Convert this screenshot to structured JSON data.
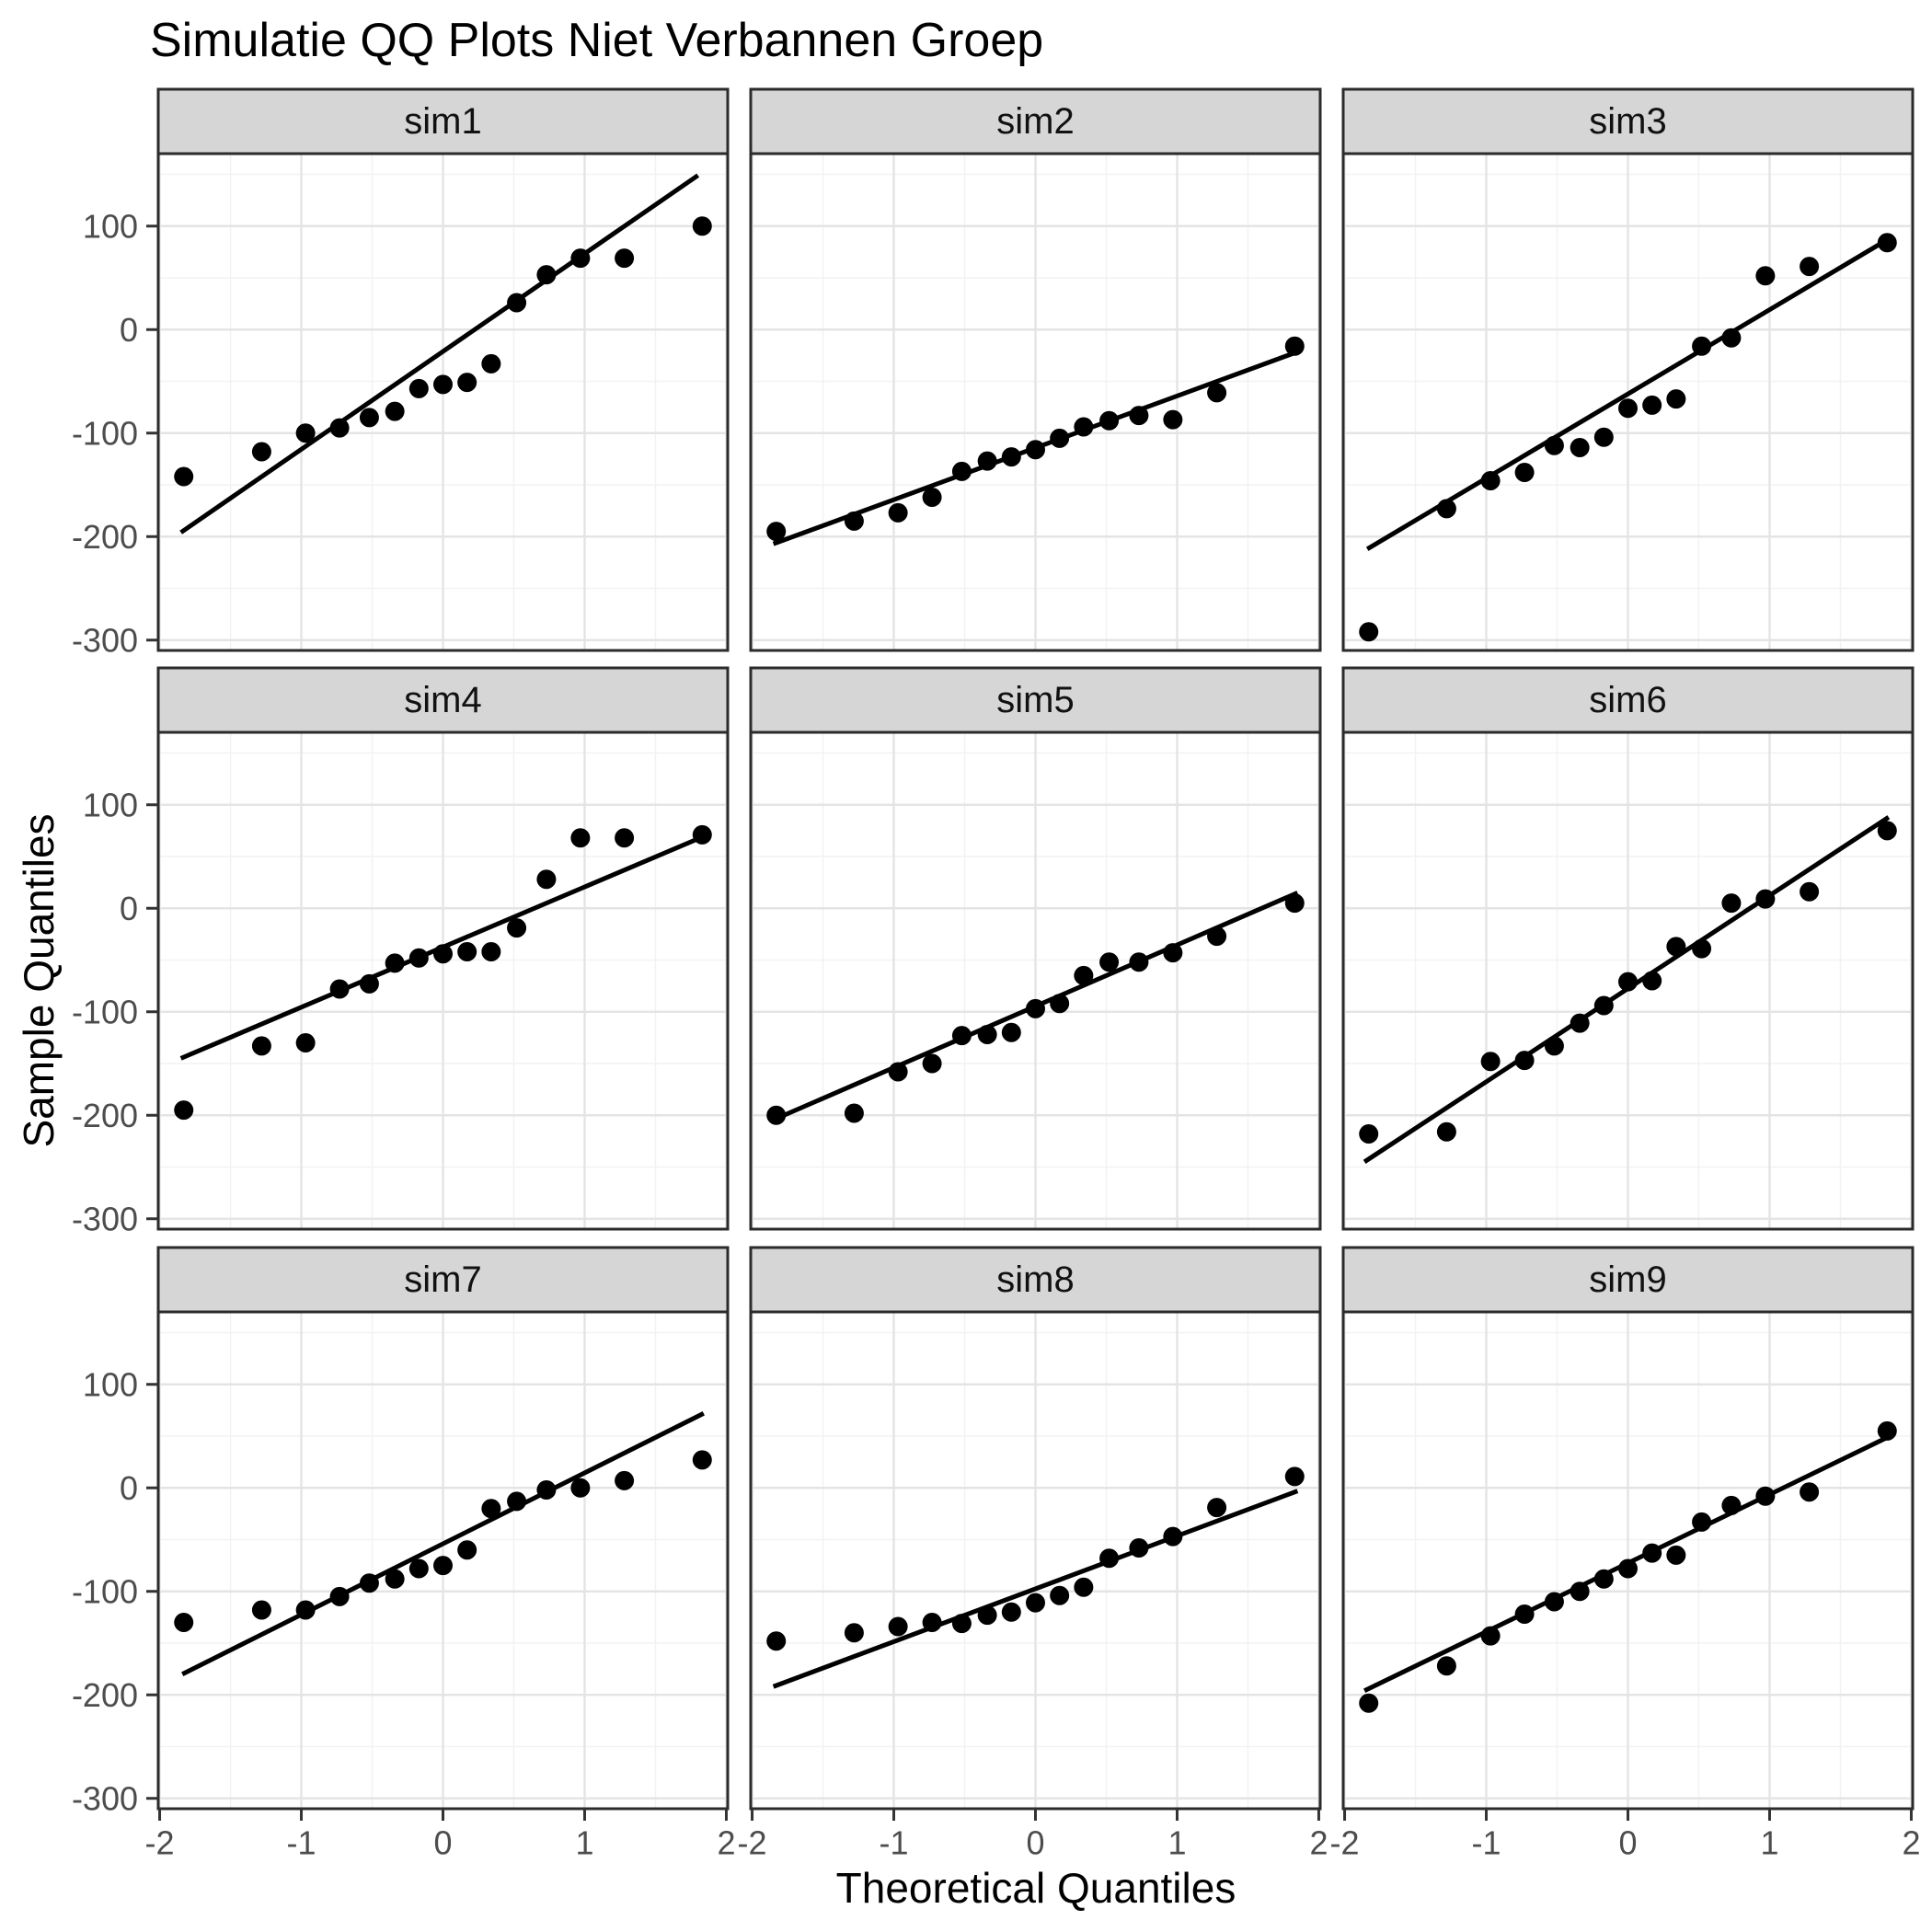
{
  "title": "Simulatie QQ Plots Niet Verbannen Groep",
  "x_axis": {
    "title": "Theoretical Quantiles",
    "tick_labels": [
      "-2",
      "-1",
      "0",
      "1",
      "2"
    ],
    "tick_values": [
      -2,
      -1,
      0,
      1,
      2
    ],
    "minor_breaks": [
      -1.5,
      -0.5,
      0.5,
      1.5
    ],
    "domain": [
      -2.01,
      2.01
    ]
  },
  "y_axis": {
    "title": "Sample Quantiles",
    "tick_labels": [
      "100",
      "0",
      "-100",
      "-200",
      "-300"
    ],
    "tick_values": [
      100,
      0,
      -100,
      -200,
      -300
    ],
    "minor_breaks": [
      150,
      50,
      -50,
      -150,
      -250
    ],
    "domain": [
      -310,
      170
    ]
  },
  "colors": {
    "background": "#FFFFFF",
    "panel_background": "#FFFFFF",
    "strip_fill": "#D6D6D6",
    "strip_border": "#2B2B2B",
    "panel_border": "#2B2B2B",
    "grid_major": "#E4E4E4",
    "grid_minor": "#F2F2F2",
    "point": "#000000",
    "qq_line": "#000000",
    "tick_mark": "#333333",
    "tick_label": "#4D4D4D",
    "strip_text": "#111111",
    "title_text": "#000000"
  },
  "chart_data": {
    "type": "scatter",
    "subtype": "qq-plot-facet-grid",
    "title": "Simulatie QQ Plots Niet Verbannen Groep",
    "xlabel": "Theoretical Quantiles",
    "ylabel": "Sample Quantiles",
    "grid": "on",
    "facet_layout": "3x3",
    "xlim": [
      -2.01,
      2.01
    ],
    "ylim": [
      -310,
      170
    ],
    "theoretical_quantiles": [
      -1.83,
      -1.28,
      -0.97,
      -0.73,
      -0.52,
      -0.34,
      -0.17,
      0,
      0.17,
      0.34,
      0.52,
      0.73,
      0.97,
      1.28,
      1.83
    ],
    "facets": [
      {
        "name": "sim1",
        "sample_quantiles": [
          -142,
          -118,
          -100,
          -95,
          -85,
          -79,
          -57,
          -53,
          -51,
          -33,
          26,
          53,
          69,
          69,
          100
        ],
        "qq_line": {
          "x": [
            -1.85,
            1.8
          ],
          "y": [
            -196,
            149
          ]
        }
      },
      {
        "name": "sim2",
        "sample_quantiles": [
          -195,
          -185,
          -177,
          -162,
          -137,
          -127,
          -123,
          -116,
          -105,
          -94,
          -88,
          -83,
          -87,
          -61,
          -16
        ],
        "qq_line": {
          "x": [
            -1.85,
            1.84
          ],
          "y": [
            -207,
            -22
          ]
        }
      },
      {
        "name": "sim3",
        "sample_quantiles": [
          -292,
          -173,
          -146,
          -138,
          -112,
          -114,
          -104,
          -76,
          -73,
          -67,
          -16,
          -8,
          52,
          61,
          84
        ],
        "qq_line": {
          "x": [
            -1.84,
            1.82
          ],
          "y": [
            -212,
            86
          ]
        }
      },
      {
        "name": "sim4",
        "sample_quantiles": [
          -195,
          -133,
          -130,
          -78,
          -73,
          -53,
          -48,
          -44,
          -42,
          -42,
          -19,
          28,
          68,
          68,
          71
        ],
        "qq_line": {
          "x": [
            -1.85,
            1.85
          ],
          "y": [
            -145,
            70
          ]
        }
      },
      {
        "name": "sim5",
        "sample_quantiles": [
          -200,
          -198,
          -158,
          -150,
          -123,
          -122,
          -120,
          -97,
          -92,
          -65,
          -52,
          -52,
          -43,
          -27,
          5
        ],
        "qq_line": {
          "x": [
            -1.86,
            1.85
          ],
          "y": [
            -205,
            15
          ]
        }
      },
      {
        "name": "sim6",
        "sample_quantiles": [
          -218,
          -216,
          -148,
          -147,
          -133,
          -111,
          -94,
          -71,
          -70,
          -37,
          -39,
          5,
          9,
          16,
          75
        ],
        "qq_line": {
          "x": [
            -1.86,
            1.84
          ],
          "y": [
            -245,
            88
          ]
        }
      },
      {
        "name": "sim7",
        "sample_quantiles": [
          -130,
          -118,
          -118,
          -105,
          -92,
          -88,
          -78,
          -75,
          -60,
          -20,
          -13,
          -2,
          0,
          7,
          27
        ],
        "qq_line": {
          "x": [
            -1.84,
            1.84
          ],
          "y": [
            -180,
            72
          ]
        }
      },
      {
        "name": "sim8",
        "sample_quantiles": [
          -148,
          -140,
          -134,
          -130,
          -131,
          -123,
          -120,
          -111,
          -104,
          -96,
          -68,
          -58,
          -47,
          -19,
          11
        ],
        "qq_line": {
          "x": [
            -1.85,
            1.85
          ],
          "y": [
            -192,
            -3
          ]
        }
      },
      {
        "name": "sim9",
        "sample_quantiles": [
          -208,
          -172,
          -143,
          -122,
          -110,
          -100,
          -88,
          -78,
          -63,
          -65,
          -33,
          -17,
          -8,
          -4,
          55
        ],
        "qq_line": {
          "x": [
            -1.86,
            1.85
          ],
          "y": [
            -196,
            50
          ]
        }
      }
    ]
  }
}
